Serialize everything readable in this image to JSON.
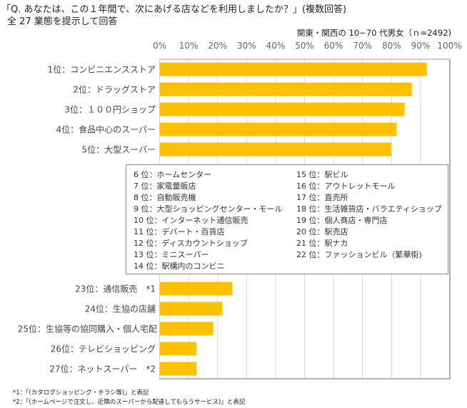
{
  "chart_data": {
    "type": "bar",
    "orientation": "horizontal",
    "title": "「Q. あなたは、この１年間で、次にあげる店などを利用しましたか？」(複数回答)",
    "subtitle": "全 27 業態を提示して回答",
    "note": "関東・関西の 10~70 代男女（ｎ=2492)",
    "xlim": [
      0,
      100
    ],
    "xticks": [
      "0%",
      "10%",
      "20%",
      "30%",
      "40%",
      "50%",
      "60%",
      "70%",
      "80%",
      "90%",
      "100%"
    ],
    "grid": true,
    "bar_color": "#FFC000",
    "categories_top": [
      "1位：コンビニエンスストア",
      "2位：ドラッグストア",
      "3位：１００円ショップ",
      "4位：食品中心のスーパー",
      "5位：大型スーパー"
    ],
    "values_top": [
      92.2,
      87.0,
      84.5,
      81.7,
      79.9
    ],
    "categories_bottom": [
      "23位：通信販売　*1",
      "24位：生協の店舗",
      "25位：生協等の協同購入・個人宅配",
      "26位：テレビショッピング",
      "27位：ネットスーパー　*2"
    ],
    "values_bottom": [
      25.1,
      21.6,
      18.5,
      12.7,
      12.7
    ],
    "middle_list_col1": [
      "6 位：ホームセンター",
      "7 位：家電量販店",
      "8 位：自動販売機",
      "9 位：大型ショッピングセンター・モール",
      "10 位：インターネット通信販売",
      "11 位：デパート・百貨店",
      "12 位：ディスカウントショップ",
      "13 位：ミニスーパー",
      "14 位：駅構内のコンビニ"
    ],
    "middle_list_col2": [
      "15 位：駅ビル",
      "16 位：アウトレットモール",
      "17 位：直売所",
      "18 位：生活雑貨店・バラエティショップ",
      "19 位：個人商店・専門店",
      "20 位：駅売店",
      "21 位：駅ナカ",
      "22 位：ファッションビル（繁華街)"
    ],
    "footnotes": [
      "*1：「(カタログショッピング・チラシ等)」と表記",
      "*2：「(ホームページで注文し、近隣のスーパーから配達してもらうサービス)」と表記"
    ]
  }
}
